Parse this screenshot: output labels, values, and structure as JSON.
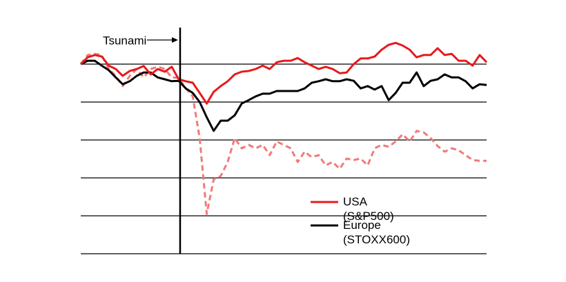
{
  "chart_data": {
    "type": "line",
    "ylim": [
      50,
      110
    ],
    "yticks": [
      50,
      60,
      70,
      80,
      90,
      100
    ],
    "grid": true,
    "series": [
      {
        "name": "USA (S&P500)",
        "color": "#e8191c",
        "dash": false,
        "values": [
          100,
          101.8,
          102.4,
          102.0,
          99.6,
          98.7,
          96.9,
          98.2,
          98.7,
          99.5,
          97.3,
          98.7,
          98.0,
          99.3,
          96.0,
          95.5,
          95.1,
          92.4,
          89.6,
          92.7,
          94.2,
          95.5,
          97.3,
          98.0,
          98.2,
          98.7,
          99.6,
          98.7,
          100.5,
          100.9,
          100.9,
          101.6,
          100.5,
          99.6,
          98.7,
          99.3,
          98.7,
          97.6,
          97.8,
          100,
          101.5,
          101.5,
          102.0,
          103.8,
          105.1,
          105.6,
          104.9,
          103.8,
          101.8,
          102.4,
          102.4,
          104.2,
          102.4,
          102.7,
          100.9,
          100.9,
          99.6,
          102.4,
          100.5
        ]
      },
      {
        "name": "Europe (STOXX600)",
        "color": "#000000",
        "dash": false,
        "values": [
          100,
          100.9,
          100.9,
          99.6,
          98.4,
          96.5,
          94.7,
          95.5,
          96.9,
          97.8,
          97.8,
          96.5,
          96.0,
          95.5,
          95.6,
          93.6,
          92.4,
          90.0,
          86.0,
          82.4,
          85.1,
          85.1,
          86.5,
          89.6,
          90.5,
          91.5,
          92.2,
          92.2,
          92.9,
          92.9,
          92.9,
          92.9,
          93.6,
          95.1,
          95.5,
          96.0,
          95.5,
          95.5,
          96.0,
          95.6,
          93.6,
          94.2,
          93.3,
          94.2,
          90.5,
          92.4,
          95.1,
          95.1,
          97.8,
          94.2,
          95.6,
          96.0,
          97.3,
          96.5,
          96.5,
          95.5,
          93.6,
          94.7,
          94.5
        ]
      },
      {
        "color": "#f07a7a",
        "dash": true,
        "values": [
          100,
          102.4,
          102.7,
          102.4,
          98.7,
          96.9,
          94.2,
          96.9,
          98.7,
          96.5,
          98.7,
          99.3,
          98.7,
          96.5,
          96.4,
          93.6,
          91.5,
          80.5,
          60.5,
          69.6,
          70.5,
          74.2,
          80.5,
          77.8,
          78.7,
          77.8,
          78.7,
          76.0,
          79.6,
          78.7,
          77.8,
          74.2,
          76.9,
          75.5,
          76.0,
          73.3,
          74.2,
          72.4,
          75.1,
          74.7,
          75.1,
          73.3,
          77.8,
          78.7,
          78.2,
          79.6,
          81.5,
          79.6,
          82.4,
          82.0,
          80.5,
          78.4,
          76.9,
          77.8,
          77.3,
          76.0,
          74.7,
          74.5,
          74.5
        ]
      }
    ],
    "annotations": [
      {
        "text": "Tsunami",
        "x": 14.2
      }
    ]
  }
}
